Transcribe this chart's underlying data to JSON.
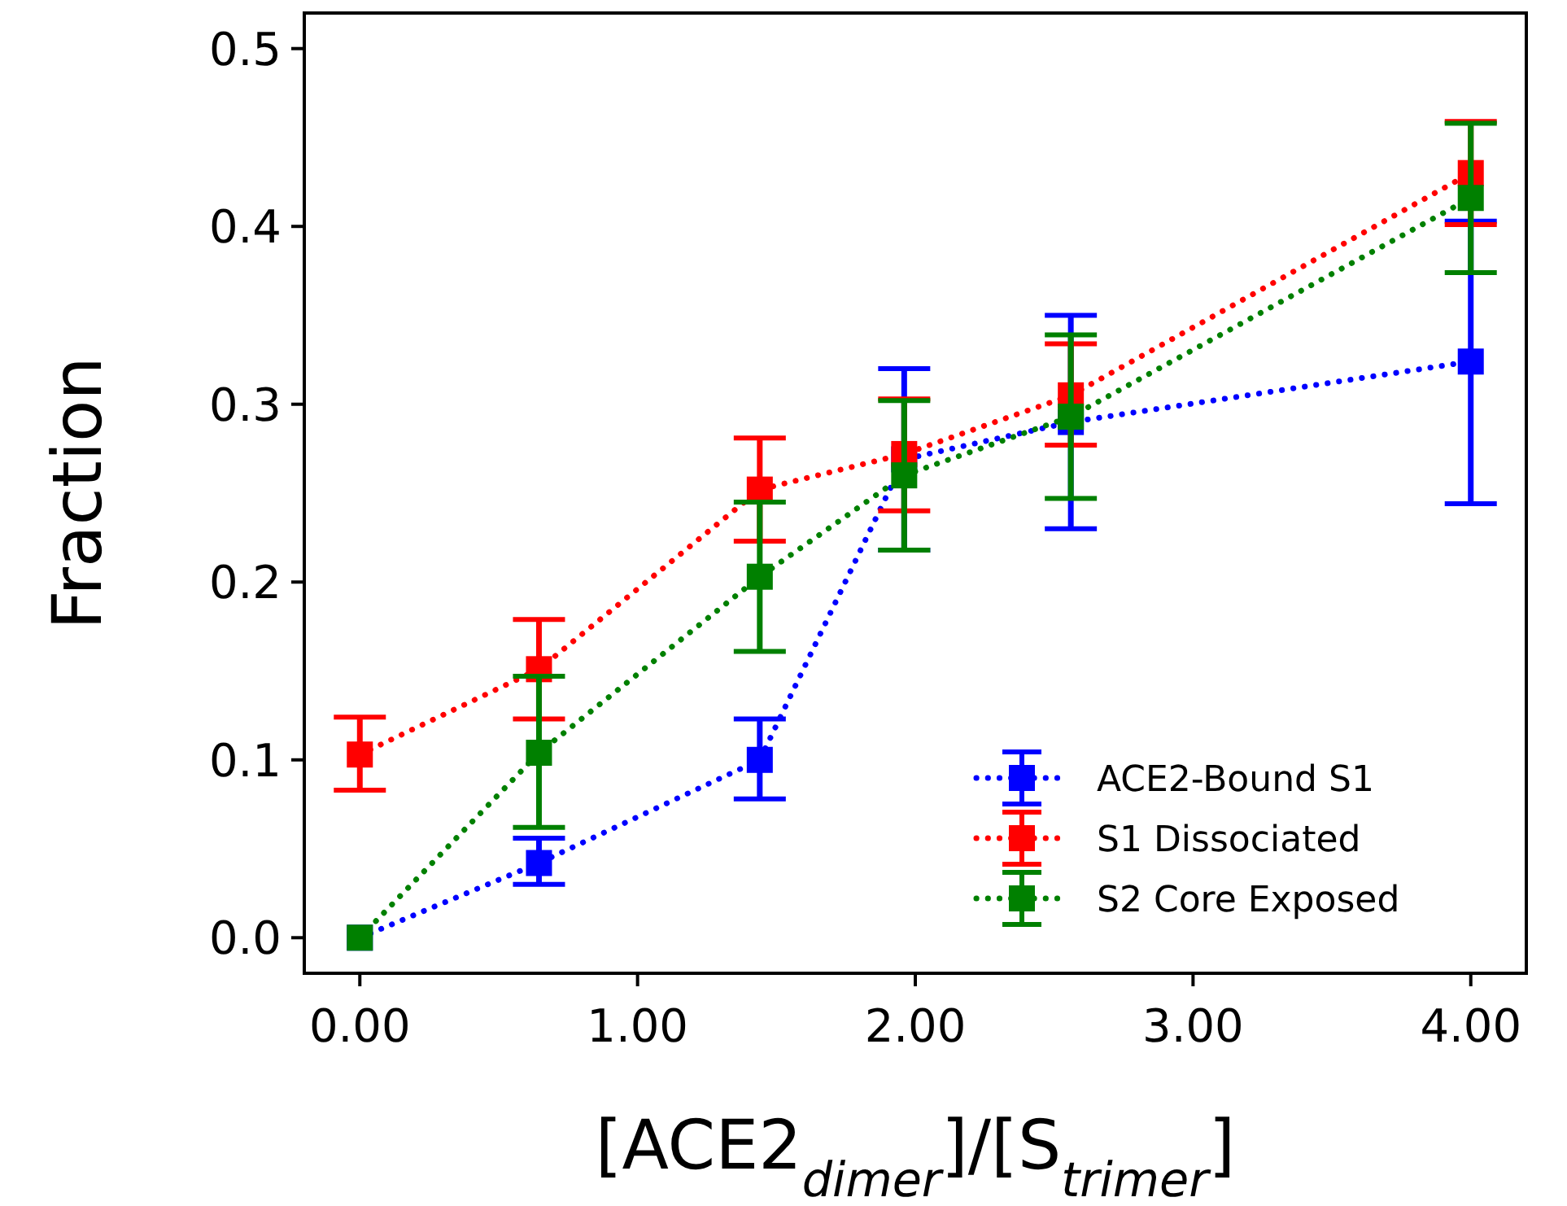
{
  "chart_data": {
    "type": "line",
    "xlabel": "[ACE2$_{dimer}$]/[S$_{trimer}$]",
    "ylabel": "Fraction",
    "xlim": [
      -0.2,
      4.2
    ],
    "xticks": [
      {
        "value": 0,
        "label": "0.00"
      },
      {
        "value": 1,
        "label": "1.00"
      },
      {
        "value": 2,
        "label": "2.00"
      },
      {
        "value": 3,
        "label": "3.00"
      },
      {
        "value": 4,
        "label": "4.00"
      }
    ],
    "ylim": [
      -0.02,
      0.52
    ],
    "yticks": [
      {
        "value": 0,
        "label": "0.0"
      },
      0.1,
      0.2,
      0.3,
      0.4,
      0.5
    ],
    "x": [
      0,
      0.645,
      1.44,
      1.96,
      2.56,
      4.0
    ],
    "marker": "square",
    "line_style": "dotted",
    "grid": false,
    "legend": "bottom right",
    "series": [
      {
        "name": "ACE2-Bound S1",
        "color": "#0000ff",
        "values": [
          0,
          0.042,
          0.1,
          0.269,
          0.29,
          0.324
        ],
        "errors": [
          null,
          [
            0.03,
            0.056
          ],
          [
            0.078,
            0.123
          ],
          [
            0.218,
            0.32
          ],
          [
            0.23,
            0.35
          ],
          [
            0.244,
            0.403
          ]
        ]
      },
      {
        "name": "S1 Dissociated",
        "color": "#ff0000",
        "values": [
          0.103,
          0.151,
          0.252,
          0.272,
          0.305,
          0.43
        ],
        "errors": [
          [
            0.083,
            0.124
          ],
          [
            0.123,
            0.179
          ],
          [
            0.223,
            0.281
          ],
          [
            0.24,
            0.303
          ],
          [
            0.277,
            0.334
          ],
          [
            0.401,
            0.459
          ]
        ]
      },
      {
        "name": "S2 Core Exposed",
        "color": "#008000",
        "values": [
          0,
          0.104,
          0.203,
          0.26,
          0.293,
          0.416
        ],
        "errors": [
          null,
          [
            0.062,
            0.147
          ],
          [
            0.161,
            0.245
          ],
          [
            0.218,
            0.302
          ],
          [
            0.247,
            0.339
          ],
          [
            0.374,
            0.458
          ]
        ]
      }
    ]
  }
}
